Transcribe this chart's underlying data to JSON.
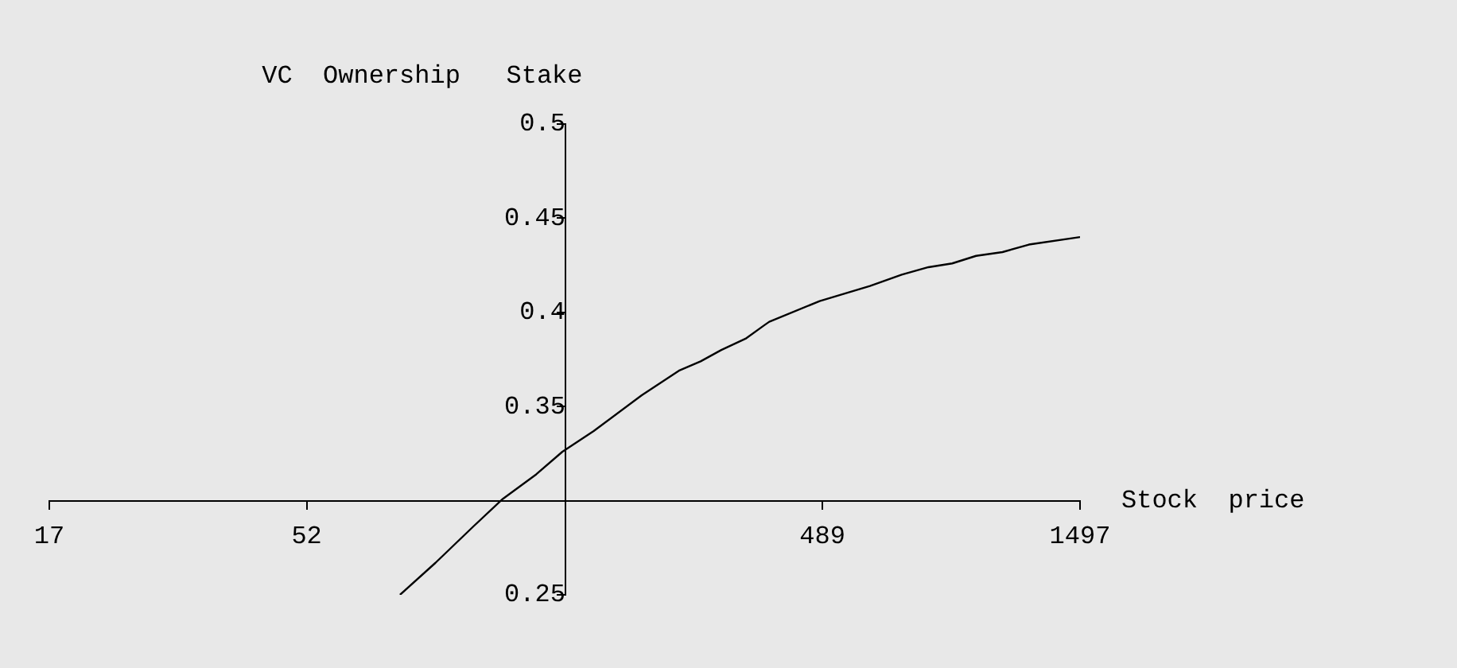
{
  "chart_data": {
    "type": "line",
    "ylabel": "VC  Ownership   Stake",
    "xlabel": "Stock  price",
    "log": "x",
    "xlim": [
      17,
      1497
    ],
    "xticks": [
      17,
      52,
      {
        "value": 160,
        "label": null
      },
      489,
      1497
    ],
    "ylim": [
      0.25,
      0.5
    ],
    "yticks": [
      0.25,
      {
        "value": 0.3,
        "label": null
      },
      0.35,
      0.4,
      0.45,
      0.5
    ],
    "grid": false,
    "legend": false,
    "marker": "none",
    "line_style": "solid",
    "x": [
      78,
      91,
      107,
      122,
      141,
      158,
      181,
      223,
      262,
      288,
      315,
      350,
      379,
      388,
      483,
      601,
      690,
      775,
      859,
      953,
      1069,
      1199,
      1497
    ],
    "series": [
      {
        "color": "#000000",
        "values": [
          0.25,
          0.267,
          0.286,
          0.301,
          0.314,
          0.326,
          0.337,
          0.356,
          0.369,
          0.374,
          0.38,
          0.386,
          0.393,
          0.395,
          0.406,
          0.414,
          0.42,
          0.424,
          0.426,
          0.43,
          0.432,
          0.436,
          0.44
        ]
      }
    ]
  }
}
